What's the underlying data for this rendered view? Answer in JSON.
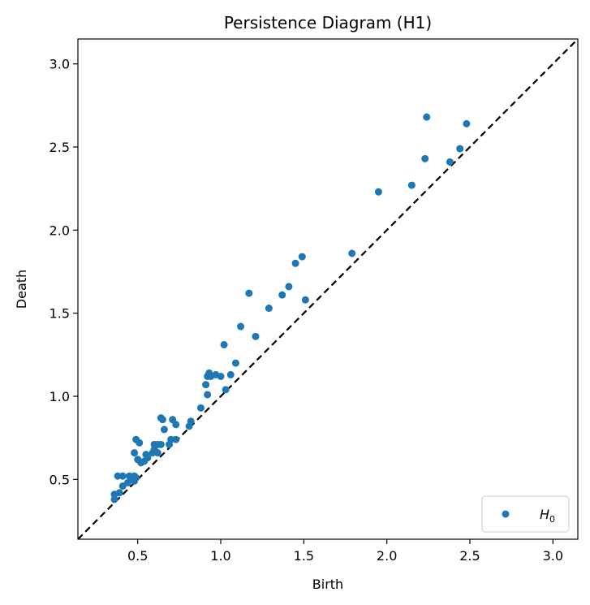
{
  "chart_data": {
    "type": "scatter",
    "title": "Persistence Diagram (H1)",
    "xlabel": "Birth",
    "ylabel": "Death",
    "xlim": [
      0.14,
      3.15
    ],
    "ylim": [
      0.14,
      3.15
    ],
    "xticks": [
      "0.5",
      "1.0",
      "1.5",
      "2.0",
      "2.5",
      "3.0"
    ],
    "yticks": [
      "0.5",
      "1.0",
      "1.5",
      "2.0",
      "2.5",
      "3.0"
    ],
    "diagonal": true,
    "legend_position": "lower-right",
    "colors": {
      "points": "#1f77b4",
      "diagonal": "#000000"
    },
    "series": [
      {
        "name": "H",
        "name_subscript": "0",
        "points": [
          [
            0.36,
            0.38
          ],
          [
            0.36,
            0.41
          ],
          [
            0.39,
            0.42
          ],
          [
            0.41,
            0.46
          ],
          [
            0.44,
            0.48
          ],
          [
            0.46,
            0.5
          ],
          [
            0.48,
            0.49
          ],
          [
            0.38,
            0.52
          ],
          [
            0.41,
            0.52
          ],
          [
            0.45,
            0.52
          ],
          [
            0.48,
            0.52
          ],
          [
            0.49,
            0.51
          ],
          [
            0.48,
            0.66
          ],
          [
            0.49,
            0.74
          ],
          [
            0.5,
            0.62
          ],
          [
            0.51,
            0.72
          ],
          [
            0.52,
            0.6
          ],
          [
            0.54,
            0.61
          ],
          [
            0.55,
            0.65
          ],
          [
            0.56,
            0.63
          ],
          [
            0.59,
            0.66
          ],
          [
            0.6,
            0.68
          ],
          [
            0.6,
            0.71
          ],
          [
            0.62,
            0.71
          ],
          [
            0.62,
            0.66
          ],
          [
            0.64,
            0.87
          ],
          [
            0.65,
            0.86
          ],
          [
            0.64,
            0.71
          ],
          [
            0.66,
            0.8
          ],
          [
            0.69,
            0.71
          ],
          [
            0.7,
            0.74
          ],
          [
            0.71,
            0.86
          ],
          [
            0.73,
            0.83
          ],
          [
            0.73,
            0.74
          ],
          [
            0.81,
            0.82
          ],
          [
            0.82,
            0.85
          ],
          [
            0.88,
            0.93
          ],
          [
            0.91,
            1.07
          ],
          [
            0.92,
            1.01
          ],
          [
            0.92,
            1.12
          ],
          [
            0.93,
            1.14
          ],
          [
            0.94,
            1.12
          ],
          [
            0.97,
            1.13
          ],
          [
            1.0,
            1.12
          ],
          [
            1.02,
            1.31
          ],
          [
            1.03,
            1.04
          ],
          [
            1.06,
            1.13
          ],
          [
            1.09,
            1.2
          ],
          [
            1.12,
            1.42
          ],
          [
            1.17,
            1.62
          ],
          [
            1.21,
            1.36
          ],
          [
            1.29,
            1.53
          ],
          [
            1.37,
            1.61
          ],
          [
            1.41,
            1.66
          ],
          [
            1.45,
            1.8
          ],
          [
            1.49,
            1.84
          ],
          [
            1.51,
            1.58
          ],
          [
            1.79,
            1.86
          ],
          [
            1.95,
            2.23
          ],
          [
            2.15,
            2.27
          ],
          [
            2.23,
            2.43
          ],
          [
            2.24,
            2.68
          ],
          [
            2.38,
            2.41
          ],
          [
            2.44,
            2.49
          ],
          [
            2.48,
            2.64
          ]
        ]
      }
    ]
  }
}
